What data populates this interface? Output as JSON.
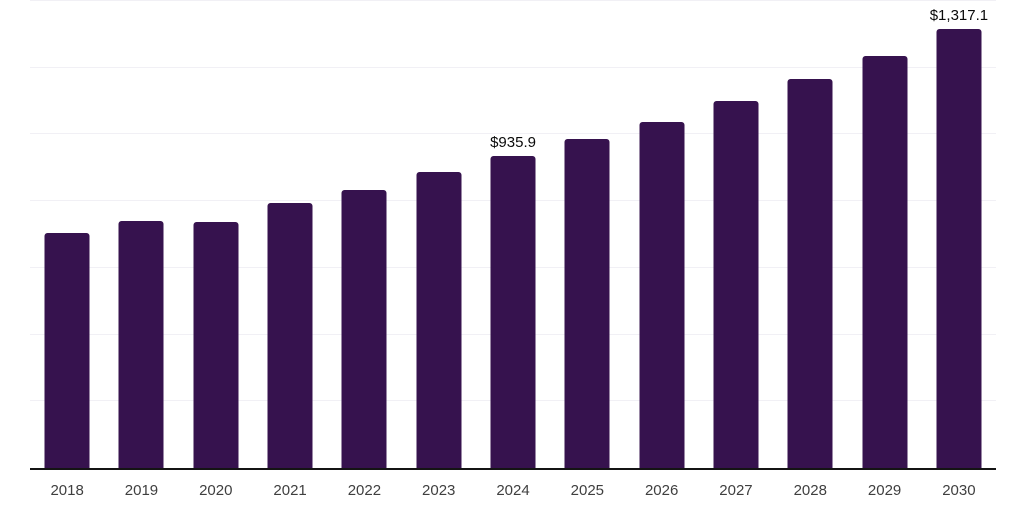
{
  "chart_data": {
    "type": "bar",
    "title": "",
    "xlabel": "",
    "ylabel": "",
    "categories": [
      "2018",
      "2019",
      "2020",
      "2021",
      "2022",
      "2023",
      "2024",
      "2025",
      "2026",
      "2027",
      "2028",
      "2029",
      "2030"
    ],
    "values": [
      705,
      742,
      737,
      796,
      835,
      888,
      935.9,
      985,
      1038,
      1100,
      1165,
      1235,
      1317.1
    ],
    "data_labels": {
      "2024": "$935.9",
      "2030": "$1,317.1"
    },
    "ylim": [
      0,
      1400
    ],
    "gridline_step": 200,
    "grid": true,
    "legend": false,
    "colors": {
      "bar": "#36124e",
      "gridline": "#f1f0f5",
      "axis_line": "#141414",
      "tick_label": "#3f3f3f",
      "data_label": "#0a0a0a"
    }
  }
}
